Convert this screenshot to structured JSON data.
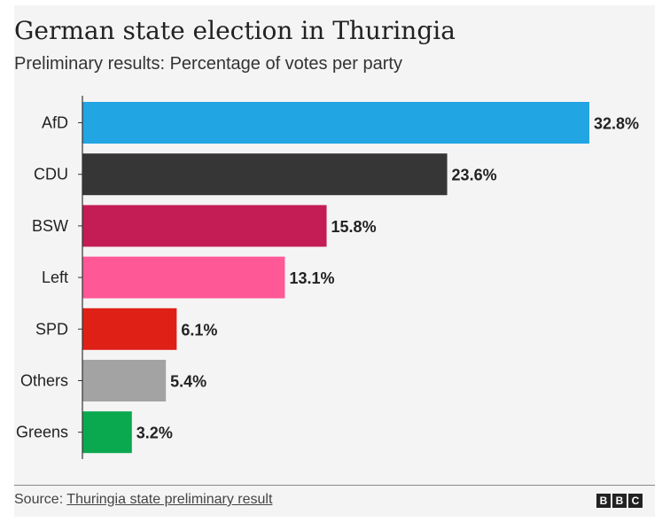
{
  "chart_data": {
    "type": "bar",
    "orientation": "horizontal",
    "title": "German state election in Thuringia",
    "subtitle": "Preliminary results: Percentage of votes per party",
    "categories": [
      "AfD",
      "CDU",
      "BSW",
      "Left",
      "SPD",
      "Others",
      "Greens"
    ],
    "values": [
      32.8,
      23.6,
      15.8,
      13.1,
      6.1,
      5.4,
      3.2
    ],
    "value_labels": [
      "32.8%",
      "23.6%",
      "15.8%",
      "13.1%",
      "6.1%",
      "5.4%",
      "3.2%"
    ],
    "colors": [
      "#22a5e3",
      "#363636",
      "#c41c54",
      "#ff5897",
      "#de2016",
      "#a3a3a3",
      "#0aa84f"
    ],
    "xlim": [
      0,
      32.8
    ],
    "grid": false,
    "legend": "none"
  },
  "footer": {
    "source_prefix": "Source: ",
    "source_link": "Thuringia state preliminary result",
    "logo_letters": [
      "B",
      "B",
      "C"
    ]
  }
}
